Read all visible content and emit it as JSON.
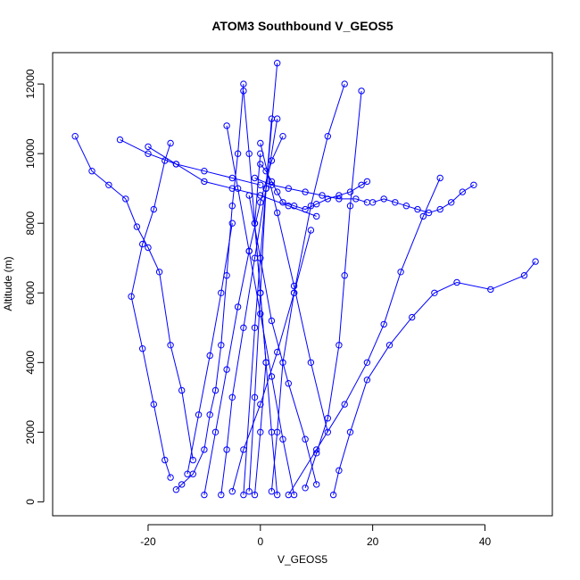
{
  "chart_data": {
    "type": "line",
    "title": "ATOM3 Southbound V_GEOS5",
    "xlabel": "V_GEOS5",
    "ylabel": "Altitude (m)",
    "xlim": [
      -37,
      52
    ],
    "ylim": [
      -400,
      12900
    ],
    "xticks": [
      -20,
      0,
      20,
      40
    ],
    "yticks": [
      0,
      2000,
      4000,
      6000,
      8000,
      10000,
      12000
    ],
    "grid": false,
    "legend": "none",
    "marker": "open-circle",
    "colors": {
      "series": "#0000ff",
      "axis": "#000000",
      "background": "#ffffff"
    },
    "series": [
      {
        "x": [
          -15,
          -14,
          -12,
          -10,
          -9,
          -8,
          -7,
          -6,
          -5,
          -4,
          -3
        ],
        "y": [
          350,
          500,
          800,
          1500,
          2500,
          3200,
          4500,
          6500,
          8500,
          10000,
          12000
        ]
      },
      {
        "x": [
          -33,
          -30,
          -27,
          -24,
          -22,
          -20,
          -18,
          -16,
          -14,
          -12
        ],
        "y": [
          10500,
          9500,
          9100,
          8700,
          7900,
          7300,
          6600,
          4500,
          3200,
          1200
        ]
      },
      {
        "x": [
          -16,
          -17,
          -19,
          -21,
          -23,
          -21,
          -19,
          -17,
          -16
        ],
        "y": [
          700,
          1200,
          2800,
          4400,
          5900,
          7400,
          8400,
          9800,
          10300
        ]
      },
      {
        "x": [
          -7,
          -6,
          -5,
          -3,
          -1,
          1,
          3
        ],
        "y": [
          200,
          1500,
          3000,
          5000,
          7000,
          9000,
          11000
        ]
      },
      {
        "x": [
          2,
          3,
          4,
          6,
          9,
          12,
          15
        ],
        "y": [
          300,
          2000,
          4000,
          6000,
          8500,
          10500,
          12000
        ]
      },
      {
        "x": [
          8,
          10,
          12,
          14,
          15,
          16,
          18
        ],
        "y": [
          400,
          1400,
          2400,
          4500,
          6500,
          8500,
          11800
        ]
      },
      {
        "x": [
          13,
          14,
          16,
          19,
          23,
          27,
          31,
          35,
          41,
          47,
          49
        ],
        "y": [
          200,
          900,
          2000,
          3500,
          4500,
          5300,
          6000,
          6300,
          6100,
          6500,
          6900
        ]
      },
      {
        "x": [
          5,
          10,
          15,
          19,
          22,
          25,
          29,
          32
        ],
        "y": [
          200,
          1500,
          2800,
          4000,
          5100,
          6600,
          8200,
          9300
        ]
      },
      {
        "x": [
          -10,
          -8,
          -6,
          -4,
          -2,
          0,
          2,
          4
        ],
        "y": [
          200,
          2000,
          3800,
          5600,
          7200,
          8600,
          9800,
          10500
        ]
      },
      {
        "x": [
          0,
          1,
          2,
          3,
          4,
          6,
          8,
          10,
          12,
          14,
          16,
          18,
          19
        ],
        "y": [
          9700,
          9500,
          9200,
          8900,
          8600,
          8500,
          8400,
          8550,
          8700,
          8800,
          8900,
          9100,
          9200
        ]
      },
      {
        "x": [
          20,
          22,
          24,
          26,
          28,
          30,
          32,
          34,
          36,
          38
        ],
        "y": [
          8600,
          8700,
          8600,
          8500,
          8400,
          8300,
          8400,
          8600,
          8900,
          9100
        ]
      },
      {
        "x": [
          -1,
          2,
          5,
          8,
          11,
          14,
          17,
          19
        ],
        "y": [
          9300,
          9100,
          9000,
          8900,
          8800,
          8700,
          8700,
          8600
        ]
      },
      {
        "x": [
          -3,
          -1,
          1,
          3
        ],
        "y": [
          200,
          5000,
          9000,
          12600
        ]
      },
      {
        "x": [
          -2,
          -1,
          0,
          1,
          2
        ],
        "y": [
          300,
          3000,
          6000,
          9000,
          11000
        ]
      },
      {
        "x": [
          -1,
          0,
          1,
          0,
          -1,
          0
        ],
        "y": [
          200,
          2000,
          4000,
          6000,
          8000,
          10000
        ]
      },
      {
        "x": [
          3,
          2,
          1,
          0,
          -1,
          -2,
          -3
        ],
        "y": [
          200,
          2000,
          4000,
          6000,
          8000,
          10000,
          11800
        ]
      },
      {
        "x": [
          -20,
          -15,
          -10,
          -5,
          0,
          5,
          10
        ],
        "y": [
          10200,
          9700,
          9200,
          9000,
          8800,
          8500,
          8200
        ]
      },
      {
        "x": [
          -25,
          -20,
          -15,
          -10,
          -5,
          0
        ],
        "y": [
          10400,
          10000,
          9700,
          9500,
          9300,
          9100
        ]
      },
      {
        "x": [
          10,
          8,
          5,
          2,
          0,
          -2
        ],
        "y": [
          500,
          1800,
          3400,
          5200,
          7000,
          8800
        ]
      },
      {
        "x": [
          -5,
          -3,
          0,
          3,
          6,
          9
        ],
        "y": [
          300,
          1500,
          2800,
          4300,
          6000,
          7800
        ]
      },
      {
        "x": [
          6,
          4,
          2,
          0,
          -2,
          -4,
          -6
        ],
        "y": [
          200,
          1800,
          3600,
          5400,
          7200,
          9000,
          10800
        ]
      },
      {
        "x": [
          -13,
          -11,
          -9,
          -7,
          -5
        ],
        "y": [
          800,
          2500,
          4200,
          6000,
          8000
        ]
      },
      {
        "x": [
          12,
          9,
          6,
          3,
          0
        ],
        "y": [
          2000,
          4000,
          6200,
          8300,
          10300
        ]
      }
    ]
  }
}
